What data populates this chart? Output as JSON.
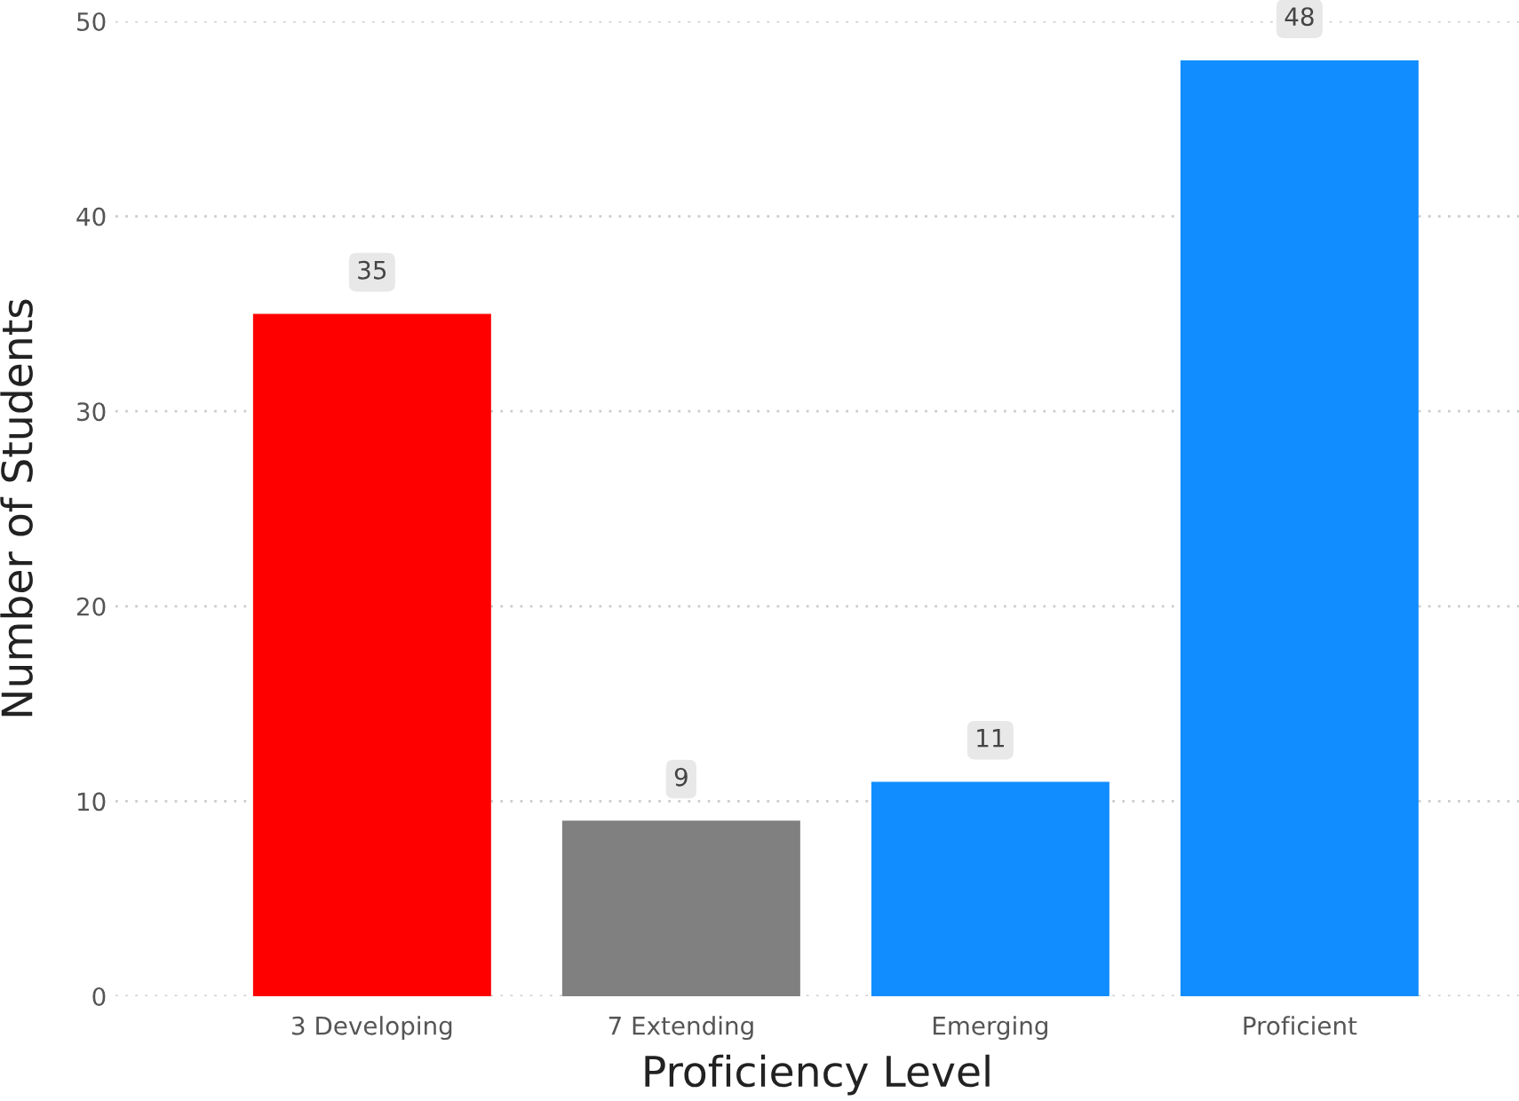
{
  "chart_data": {
    "type": "bar",
    "xlabel": "Proficiency Level",
    "ylabel": "Number of Students",
    "categories": [
      "3 Developing",
      "7 Extending",
      "Emerging",
      "Proficient"
    ],
    "values": [
      35,
      9,
      11,
      48
    ],
    "colors": [
      "#ff0000",
      "#808080",
      "#118dff",
      "#118dff"
    ],
    "ylim": [
      0,
      50
    ],
    "yticks": [
      0,
      10,
      20,
      30,
      40,
      50
    ],
    "grid": "y",
    "data_labels": true
  }
}
